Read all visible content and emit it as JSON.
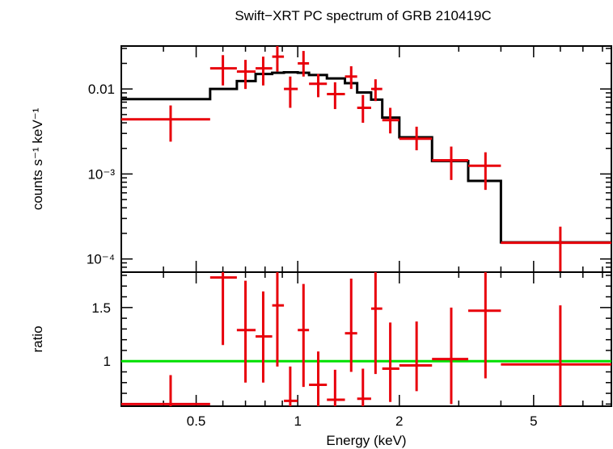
{
  "chart_data": [
    {
      "type": "line",
      "title": "Swift−XRT PC spectrum of GRB 210419C",
      "ylabel": "counts s⁻¹ keV⁻¹",
      "xscale": "log",
      "yscale": "log",
      "xlim": [
        0.3,
        8.5
      ],
      "ylim": [
        7e-05,
        0.032
      ],
      "yticks": [
        {
          "value": 0.01,
          "label": "0.01"
        },
        {
          "value": 0.001,
          "label": "10⁻³"
        },
        {
          "value": 0.0001,
          "label": "10⁻⁴"
        }
      ],
      "series": [
        {
          "kind": "data",
          "color": "#e8000b",
          "points": [
            {
              "xlo": 0.3,
              "xhi": 0.55,
              "x": 0.42,
              "y": 0.0044,
              "ylo": 0.0024,
              "yhi": 0.0064
            },
            {
              "xlo": 0.55,
              "xhi": 0.66,
              "x": 0.6,
              "y": 0.0175,
              "ylo": 0.011,
              "yhi": 0.025
            },
            {
              "xlo": 0.66,
              "xhi": 0.75,
              "x": 0.7,
              "y": 0.016,
              "ylo": 0.01,
              "yhi": 0.022
            },
            {
              "xlo": 0.75,
              "xhi": 0.84,
              "x": 0.79,
              "y": 0.0175,
              "ylo": 0.011,
              "yhi": 0.024
            },
            {
              "xlo": 0.84,
              "xhi": 0.91,
              "x": 0.87,
              "y": 0.024,
              "ylo": 0.016,
              "yhi": 0.032
            },
            {
              "xlo": 0.91,
              "xhi": 1.0,
              "x": 0.95,
              "y": 0.01,
              "ylo": 0.006,
              "yhi": 0.014
            },
            {
              "xlo": 1.0,
              "xhi": 1.08,
              "x": 1.04,
              "y": 0.02,
              "ylo": 0.014,
              "yhi": 0.028
            },
            {
              "xlo": 1.08,
              "xhi": 1.22,
              "x": 1.15,
              "y": 0.0115,
              "ylo": 0.008,
              "yhi": 0.015
            },
            {
              "xlo": 1.22,
              "xhi": 1.38,
              "x": 1.29,
              "y": 0.0087,
              "ylo": 0.0058,
              "yhi": 0.012
            },
            {
              "xlo": 1.38,
              "xhi": 1.5,
              "x": 1.44,
              "y": 0.014,
              "ylo": 0.01,
              "yhi": 0.0185
            },
            {
              "xlo": 1.5,
              "xhi": 1.65,
              "x": 1.56,
              "y": 0.006,
              "ylo": 0.004,
              "yhi": 0.0085
            },
            {
              "xlo": 1.65,
              "xhi": 1.78,
              "x": 1.7,
              "y": 0.01,
              "ylo": 0.0072,
              "yhi": 0.013
            },
            {
              "xlo": 1.78,
              "xhi": 2.0,
              "x": 1.88,
              "y": 0.0043,
              "ylo": 0.003,
              "yhi": 0.006
            },
            {
              "xlo": 2.0,
              "xhi": 2.5,
              "x": 2.25,
              "y": 0.0026,
              "ylo": 0.0019,
              "yhi": 0.0036
            },
            {
              "xlo": 2.5,
              "xhi": 3.2,
              "x": 2.85,
              "y": 0.00145,
              "ylo": 0.00085,
              "yhi": 0.0021
            },
            {
              "xlo": 3.2,
              "xhi": 4.0,
              "x": 3.6,
              "y": 0.00125,
              "ylo": 0.00065,
              "yhi": 0.0018
            },
            {
              "xlo": 4.0,
              "xhi": 8.5,
              "x": 6.0,
              "y": 0.000155,
              "ylo": 7e-05,
              "yhi": 0.00024
            }
          ]
        },
        {
          "kind": "model",
          "color": "#000000",
          "steps": [
            {
              "xlo": 0.3,
              "xhi": 0.55,
              "y": 0.0076
            },
            {
              "xlo": 0.55,
              "xhi": 0.66,
              "y": 0.01
            },
            {
              "xlo": 0.66,
              "xhi": 0.75,
              "y": 0.0124
            },
            {
              "xlo": 0.75,
              "xhi": 0.84,
              "y": 0.015
            },
            {
              "xlo": 0.84,
              "xhi": 0.91,
              "y": 0.0155
            },
            {
              "xlo": 0.91,
              "xhi": 1.0,
              "y": 0.0157
            },
            {
              "xlo": 1.0,
              "xhi": 1.08,
              "y": 0.0155
            },
            {
              "xlo": 1.08,
              "xhi": 1.22,
              "y": 0.0146
            },
            {
              "xlo": 1.22,
              "xhi": 1.38,
              "y": 0.0133
            },
            {
              "xlo": 1.38,
              "xhi": 1.5,
              "y": 0.0117
            },
            {
              "xlo": 1.5,
              "xhi": 1.65,
              "y": 0.0091
            },
            {
              "xlo": 1.65,
              "xhi": 1.78,
              "y": 0.0075
            },
            {
              "xlo": 1.78,
              "xhi": 2.0,
              "y": 0.0046
            },
            {
              "xlo": 2.0,
              "xhi": 2.5,
              "y": 0.0027
            },
            {
              "xlo": 2.5,
              "xhi": 3.2,
              "y": 0.00142
            },
            {
              "xlo": 3.2,
              "xhi": 4.0,
              "y": 0.00083
            },
            {
              "xlo": 4.0,
              "xhi": 8.5,
              "y": 0.000157
            }
          ]
        }
      ]
    },
    {
      "type": "line",
      "xlabel": "Energy (keV)",
      "ylabel": "ratio",
      "xscale": "log",
      "xlim": [
        0.3,
        8.5
      ],
      "ylim": [
        0.58,
        1.83
      ],
      "xticks": [
        {
          "value": 0.5,
          "label": "0.5"
        },
        {
          "value": 1,
          "label": "1"
        },
        {
          "value": 2,
          "label": "2"
        },
        {
          "value": 5,
          "label": "5"
        }
      ],
      "yticks": [
        {
          "value": 1,
          "label": "1"
        },
        {
          "value": 1.5,
          "label": "1.5"
        }
      ],
      "reference_line": {
        "y": 1,
        "color": "#00e000"
      },
      "series": [
        {
          "kind": "ratio",
          "color": "#e8000b",
          "points": [
            {
              "xlo": 0.3,
              "xhi": 0.55,
              "x": 0.42,
              "y": 0.6,
              "ylo": 0.55,
              "yhi": 0.87
            },
            {
              "xlo": 0.55,
              "xhi": 0.66,
              "x": 0.6,
              "y": 1.78,
              "ylo": 1.15,
              "yhi": 1.9
            },
            {
              "xlo": 0.66,
              "xhi": 0.75,
              "x": 0.7,
              "y": 1.29,
              "ylo": 0.8,
              "yhi": 1.75
            },
            {
              "xlo": 0.75,
              "xhi": 0.84,
              "x": 0.79,
              "y": 1.23,
              "ylo": 0.8,
              "yhi": 1.65
            },
            {
              "xlo": 0.84,
              "xhi": 0.91,
              "x": 0.87,
              "y": 1.52,
              "ylo": 0.95,
              "yhi": 1.95
            },
            {
              "xlo": 0.91,
              "xhi": 1.0,
              "x": 0.95,
              "y": 0.63,
              "ylo": 0.55,
              "yhi": 0.95
            },
            {
              "xlo": 1.0,
              "xhi": 1.08,
              "x": 1.04,
              "y": 1.29,
              "ylo": 0.76,
              "yhi": 1.72
            },
            {
              "xlo": 1.08,
              "xhi": 1.22,
              "x": 1.15,
              "y": 0.78,
              "ylo": 0.55,
              "yhi": 1.09
            },
            {
              "xlo": 1.22,
              "xhi": 1.38,
              "x": 1.29,
              "y": 0.64,
              "ylo": 0.55,
              "yhi": 0.92
            },
            {
              "xlo": 1.38,
              "xhi": 1.5,
              "x": 1.44,
              "y": 1.26,
              "ylo": 0.9,
              "yhi": 1.77
            },
            {
              "xlo": 1.5,
              "xhi": 1.65,
              "x": 1.56,
              "y": 0.65,
              "ylo": 0.55,
              "yhi": 0.93
            },
            {
              "xlo": 1.65,
              "xhi": 1.78,
              "x": 1.7,
              "y": 1.49,
              "ylo": 0.88,
              "yhi": 1.85
            },
            {
              "xlo": 1.78,
              "xhi": 2.0,
              "x": 1.88,
              "y": 0.93,
              "ylo": 0.62,
              "yhi": 1.36
            },
            {
              "xlo": 2.0,
              "xhi": 2.5,
              "x": 2.25,
              "y": 0.96,
              "ylo": 0.72,
              "yhi": 1.37
            },
            {
              "xlo": 2.5,
              "xhi": 3.2,
              "x": 2.85,
              "y": 1.02,
              "ylo": 0.6,
              "yhi": 1.5
            },
            {
              "xlo": 3.2,
              "xhi": 4.0,
              "x": 3.6,
              "y": 1.47,
              "ylo": 0.84,
              "yhi": 1.9
            },
            {
              "xlo": 4.0,
              "xhi": 8.5,
              "x": 6.0,
              "y": 0.97,
              "ylo": 0.55,
              "yhi": 1.52
            }
          ]
        }
      ]
    }
  ]
}
